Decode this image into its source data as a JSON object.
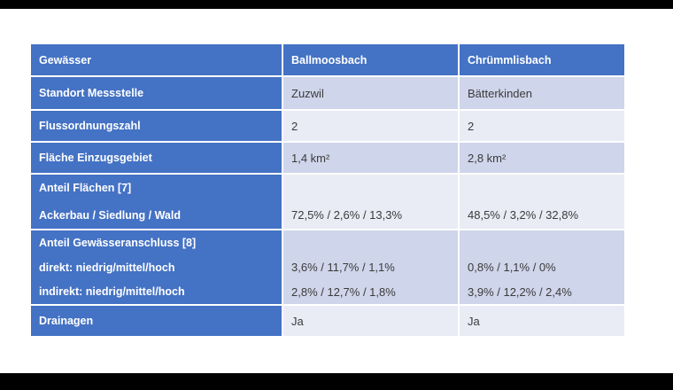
{
  "page": {
    "background": "#ffffff",
    "letterbox_color": "#000000"
  },
  "colors": {
    "header_blue": "#4472C4",
    "band_dark": "#CFD5EA",
    "band_light": "#E9EBF5",
    "header_text": "#FFFFFF",
    "data_text": "#3B3B3B"
  },
  "table": {
    "header": {
      "col0": "Gewässer",
      "col1": "Ballmoosbach",
      "col2": "Chrümmlisbach"
    },
    "rows": [
      {
        "label_lines": [
          "Standort Messstelle"
        ],
        "col1_lines": [
          "Zuzwil"
        ],
        "col2_lines": [
          "Bätterkinden"
        ]
      },
      {
        "label_lines": [
          "Flussordnungszahl"
        ],
        "col1_lines": [
          "2"
        ],
        "col2_lines": [
          "2"
        ]
      },
      {
        "label_lines": [
          "Fläche Einzugsgebiet"
        ],
        "col1_lines": [
          "1,4 km²"
        ],
        "col2_lines": [
          "2,8 km²"
        ]
      },
      {
        "label_lines": [
          "Anteil Flächen [7]",
          "Ackerbau / Siedlung / Wald"
        ],
        "col1_lines": [
          "",
          "72,5% / 2,6% / 13,3%"
        ],
        "col2_lines": [
          "",
          "48,5% / 3,2% / 32,8%"
        ]
      },
      {
        "label_lines": [
          "Anteil Gewässeranschluss [8]",
          "direkt: niedrig/mittel/hoch",
          "indirekt: niedrig/mittel/hoch"
        ],
        "col1_lines": [
          "",
          "3,6% / 11,7% / 1,1%",
          "2,8% / 12,7% / 1,8%"
        ],
        "col2_lines": [
          "",
          "0,8% / 1,1% / 0%",
          "3,9% / 12,2% / 2,4%"
        ]
      },
      {
        "label_lines": [
          "Drainagen"
        ],
        "col1_lines": [
          "Ja"
        ],
        "col2_lines": [
          "Ja"
        ]
      }
    ]
  }
}
